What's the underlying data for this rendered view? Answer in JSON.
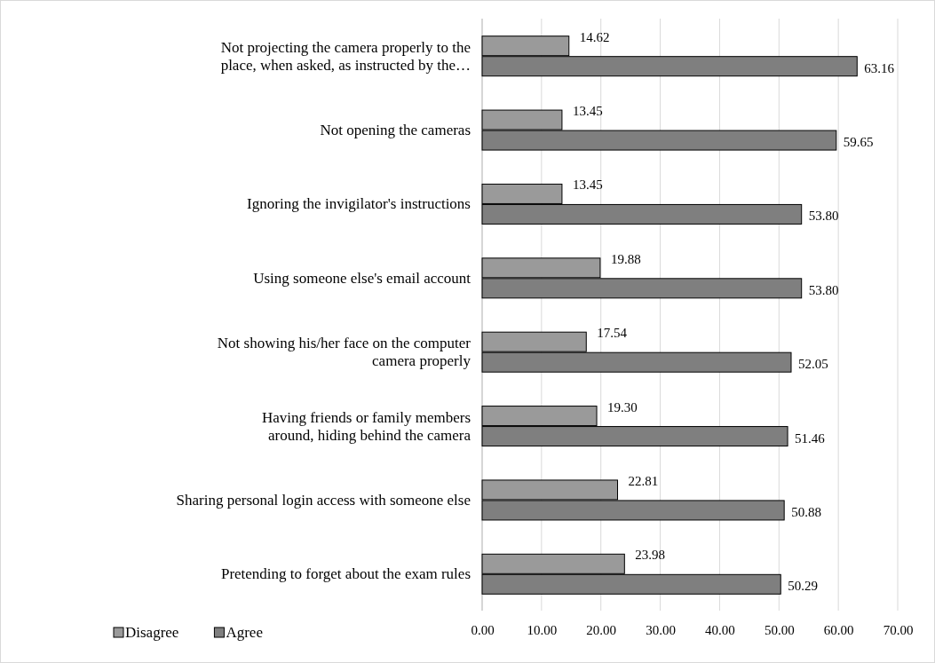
{
  "chart_data": {
    "type": "bar",
    "orientation": "horizontal",
    "categories": [
      "Not projecting the camera properly to the\nplace, when asked, as instructed by the…",
      "Not opening the cameras",
      "Ignoring the invigilator's instructions",
      "Using someone else's email account",
      "Not showing his/her face on the computer\ncamera properly",
      "Having friends or family members\naround, hiding behind the camera",
      "Sharing personal login access with someone else",
      "Pretending to forget about the exam rules"
    ],
    "series": [
      {
        "name": "Disagree",
        "color": "#9a9a9a",
        "values": [
          14.62,
          13.45,
          13.45,
          19.88,
          17.54,
          19.3,
          22.81,
          23.98
        ],
        "value_labels": [
          "14.62",
          "13.45",
          "13.45",
          "19.88",
          "17.54",
          "19.30",
          "22.81",
          "23.98"
        ]
      },
      {
        "name": "Agree",
        "color": "#7f7f7f",
        "values": [
          63.16,
          59.65,
          53.8,
          53.8,
          52.05,
          51.46,
          50.88,
          50.29
        ],
        "value_labels": [
          "63.16",
          "59.65",
          "53.80",
          "53.80",
          "52.05",
          "51.46",
          "50.88",
          "50.29"
        ]
      }
    ],
    "xlim": [
      0,
      70
    ],
    "xticks": [
      {
        "value": 0,
        "label": "0.00"
      },
      {
        "value": 10,
        "label": "10.00"
      },
      {
        "value": 20,
        "label": "20.00"
      },
      {
        "value": 30,
        "label": "30.00"
      },
      {
        "value": 40,
        "label": "40.00"
      },
      {
        "value": 50,
        "label": "50.00"
      },
      {
        "value": 60,
        "label": "60.00"
      },
      {
        "value": 70,
        "label": "70.00"
      }
    ],
    "grid": "x",
    "legend": "bottom left"
  }
}
